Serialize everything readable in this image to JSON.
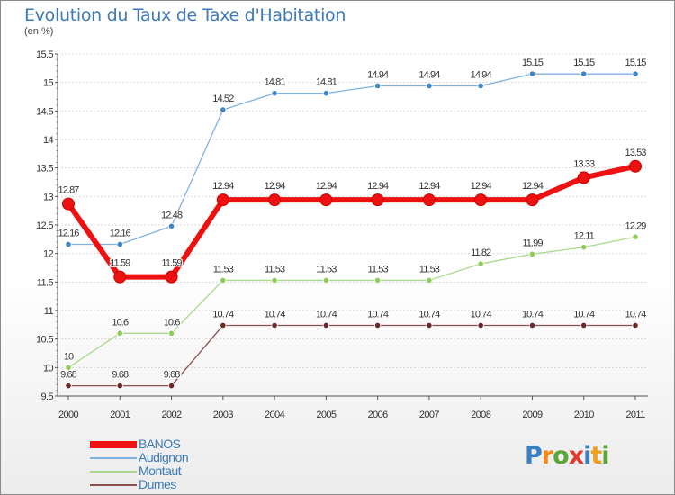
{
  "title": "Evolution du Taux de Taxe d'Habitation",
  "subtitle": "(en %)",
  "logo": {
    "text": "Proxiti",
    "letters": [
      "P",
      "r",
      "o",
      "x",
      "i",
      "t",
      "i"
    ],
    "colors": [
      "#3a7fc4",
      "#f08a1c",
      "#5aa63a",
      "#e23a2a",
      "#3a7fc4",
      "#f0a020",
      "#5aa63a"
    ]
  },
  "chart_data": {
    "type": "line",
    "title": "Evolution du Taux de Taxe d'Habitation",
    "xlabel": "",
    "ylabel": "(en %)",
    "categories": [
      "2000",
      "2001",
      "2002",
      "2003",
      "2004",
      "2005",
      "2006",
      "2007",
      "2008",
      "2009",
      "2010",
      "2011"
    ],
    "ylim": [
      9.5,
      15.5
    ],
    "yticks": [
      "9.5",
      "10",
      "10.5",
      "11",
      "11.5",
      "12",
      "12.5",
      "13",
      "13.5",
      "14",
      "14.5",
      "15",
      "15.5"
    ],
    "grid": "horizontal",
    "legend": "bottom-left",
    "series": [
      {
        "name": "Audignon",
        "color": "#5b9bd5",
        "line": "#7fb2e0",
        "marker": "#3e86c8",
        "thick": false,
        "values": [
          12.16,
          12.16,
          12.48,
          14.52,
          14.81,
          14.81,
          14.94,
          14.94,
          14.94,
          15.15,
          15.15,
          15.15
        ],
        "labels": [
          "12.16",
          "12.16",
          "12.48",
          "14.52",
          "14.81",
          "14.81",
          "14.94",
          "14.94",
          "14.94",
          "15.15",
          "15.15",
          "15.15"
        ]
      },
      {
        "name": "Montaut",
        "color": "#9bd26b",
        "line": "#a9d98a",
        "marker": "#8fcc5a",
        "thick": false,
        "values": [
          10,
          10.6,
          10.6,
          11.53,
          11.53,
          11.53,
          11.53,
          11.53,
          11.82,
          11.99,
          12.11,
          12.29
        ],
        "labels": [
          "10",
          "10.6",
          "10.6",
          "11.53",
          "11.53",
          "11.53",
          "11.53",
          "11.53",
          "11.82",
          "11.99",
          "12.11",
          "12.29"
        ]
      },
      {
        "name": "Dumes",
        "color": "#8a4a4a",
        "line": "#8a5050",
        "marker": "#6b2a2a",
        "thick": false,
        "values": [
          9.68,
          9.68,
          9.68,
          10.74,
          10.74,
          10.74,
          10.74,
          10.74,
          10.74,
          10.74,
          10.74,
          10.74
        ],
        "labels": [
          "9.68",
          "9.68",
          "9.68",
          "10.74",
          "10.74",
          "10.74",
          "10.74",
          "10.74",
          "10.74",
          "10.74",
          "10.74",
          "10.74"
        ]
      },
      {
        "name": "BANOS",
        "color": "#ee1111",
        "line": "#ee1111",
        "marker": "#ee1111",
        "thick": true,
        "values": [
          12.87,
          11.59,
          11.59,
          12.94,
          12.94,
          12.94,
          12.94,
          12.94,
          12.94,
          12.94,
          13.33,
          13.53
        ],
        "labels": [
          "12.87",
          "11.59",
          "11.59",
          "12.94",
          "12.94",
          "12.94",
          "12.94",
          "12.94",
          "12.94",
          "12.94",
          "13.33",
          "13.53"
        ]
      }
    ],
    "legend_order": [
      "BANOS",
      "Audignon",
      "Montaut",
      "Dumes"
    ]
  }
}
